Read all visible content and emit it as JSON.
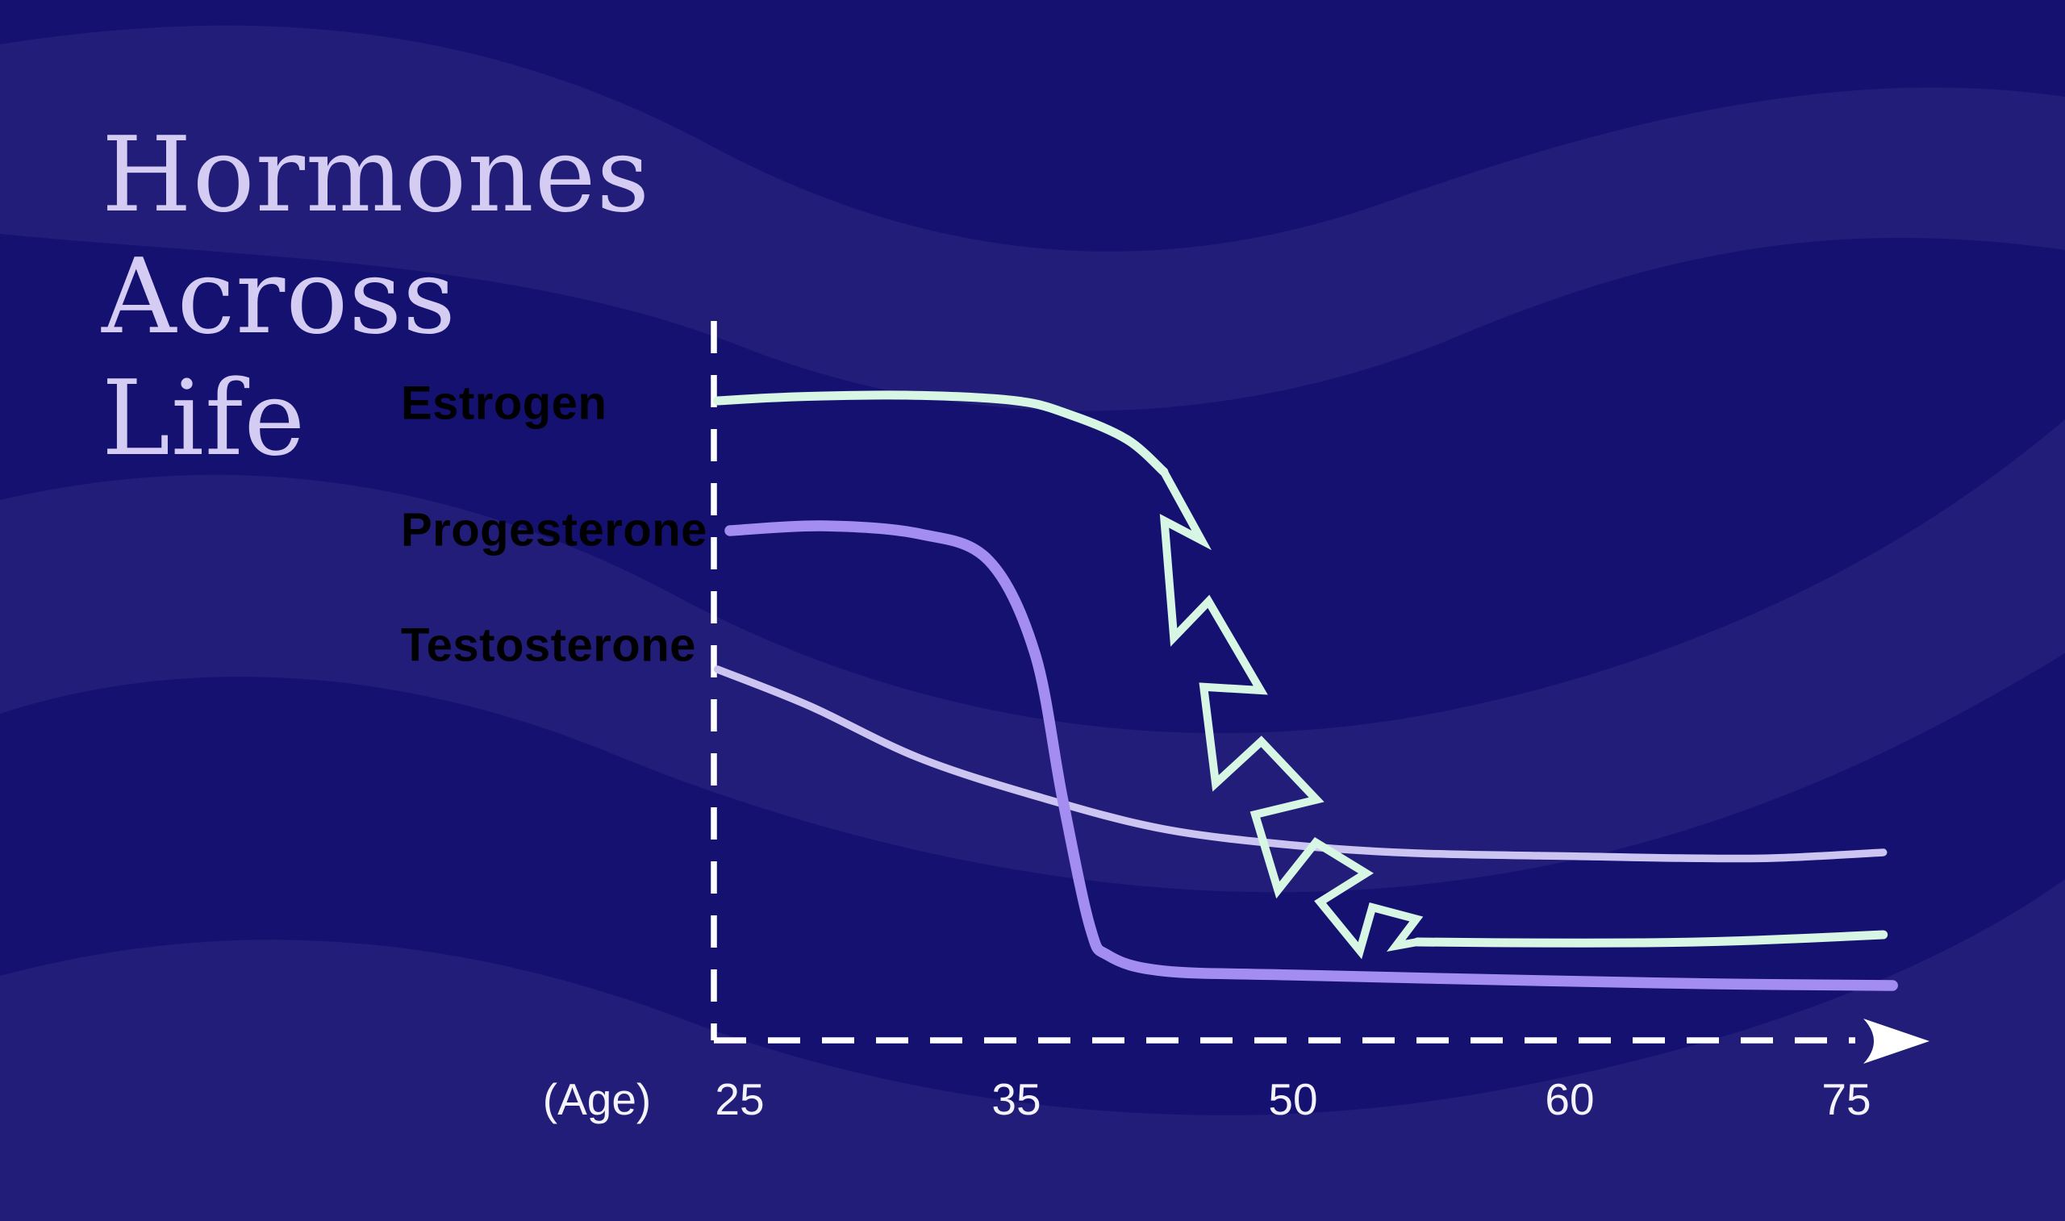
{
  "title": {
    "lines": [
      "Hormones",
      "Across",
      "Life"
    ]
  },
  "legend": [
    {
      "label": "Estrogen",
      "color": "#c8efd8"
    },
    {
      "label": "Progesterone",
      "color": "#9d85e8"
    },
    {
      "label": "Testosterone",
      "color": "#c7c0ee"
    }
  ],
  "colors": {
    "background": "#141170",
    "wave_band": "#211d78",
    "title_text": "#d4ccf2",
    "axis": "#ffffff",
    "tick_text": "#f4f3fc"
  },
  "chart_data": {
    "type": "line",
    "title": "Hormones Across Life",
    "xlabel": "(Age)",
    "x_ticks": [
      25,
      35,
      50,
      60,
      75
    ],
    "x_axis_style": "dashed white line with arrowhead",
    "y_axis_style": "dashed white line, no scale labels",
    "ylabel": "",
    "y_unit": "relative hormone level (unlabeled, 0-100 est.)",
    "legend_position": "left of y-axis, stacked",
    "grid": false,
    "series": [
      {
        "name": "Estrogen",
        "color": "#d7f6e4",
        "points": [
          [
            24.2,
            79.3
          ],
          [
            27,
            79.8
          ],
          [
            31,
            80
          ],
          [
            35,
            79.3
          ],
          [
            38,
            77.5
          ],
          [
            41,
            74.5
          ],
          [
            43,
            70.5
          ]
        ],
        "fluctuation_zigzag": {
          "age_start": 43,
          "level_start": 70.5,
          "age_end": 54.5,
          "level_end": 12.2,
          "cycles": 9,
          "amplitude": 40
        },
        "points_after": [
          [
            54.5,
            12.2
          ],
          [
            58,
            12.1
          ],
          [
            64,
            12.1
          ],
          [
            70,
            12.4
          ],
          [
            77,
            13.1
          ]
        ]
      },
      {
        "name": "Progesterone",
        "color": "#a48df0",
        "points": [
          [
            24.65,
            63.2
          ],
          [
            28,
            63.8
          ],
          [
            31.5,
            62.8
          ],
          [
            34,
            59.5
          ],
          [
            36,
            48
          ],
          [
            37.5,
            30
          ],
          [
            39,
            14
          ],
          [
            40,
            10.5
          ],
          [
            43,
            8.6
          ],
          [
            50,
            8.1
          ],
          [
            59,
            7.4
          ],
          [
            68,
            7.0
          ],
          [
            77.5,
            6.8
          ]
        ]
      },
      {
        "name": "Testosterone",
        "color": "#ccc5f1",
        "points": [
          [
            24.2,
            46
          ],
          [
            27.5,
            41.5
          ],
          [
            31.5,
            35
          ],
          [
            36.5,
            30
          ],
          [
            43,
            26.2
          ],
          [
            50,
            24.2
          ],
          [
            54.5,
            23.2
          ],
          [
            61,
            22.8
          ],
          [
            66,
            22.6
          ],
          [
            71,
            22.6
          ],
          [
            77,
            23.3
          ]
        ]
      }
    ]
  }
}
